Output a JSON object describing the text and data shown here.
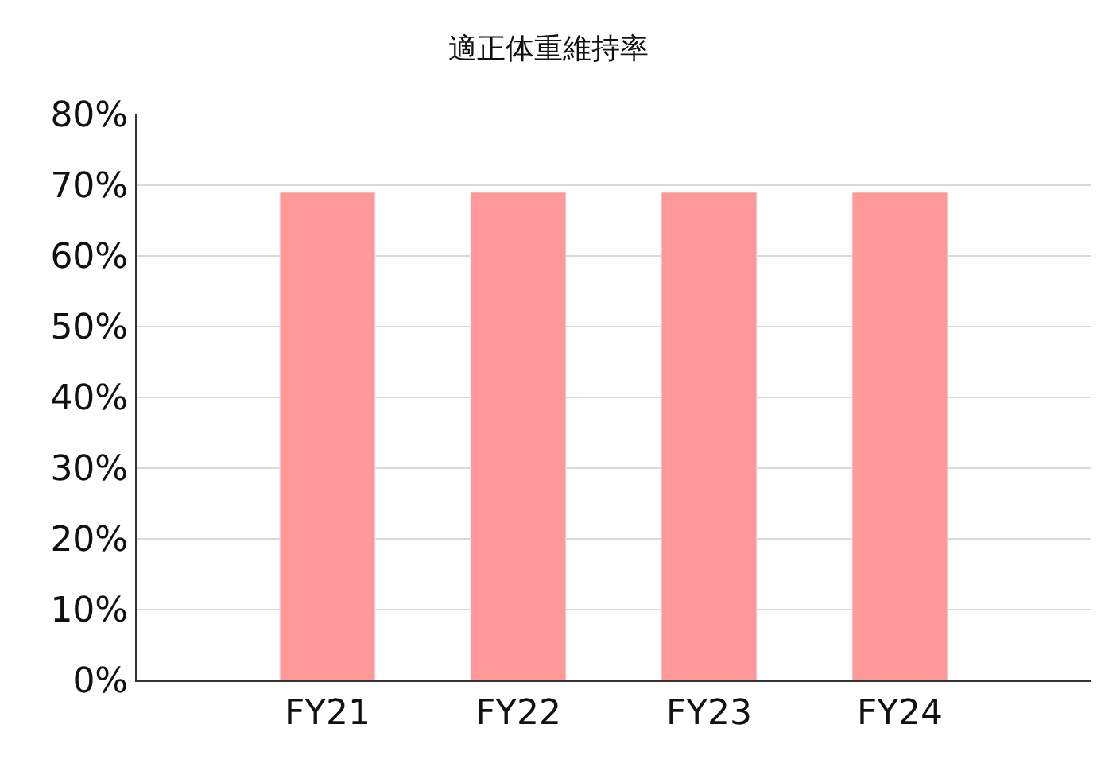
{
  "chart_data": {
    "type": "bar",
    "title": "適正体重維持率",
    "categories": [
      "FY21",
      "FY22",
      "FY23",
      "FY24"
    ],
    "values": [
      69,
      69,
      69,
      69
    ],
    "color": "#ff9999",
    "ylim": [
      0,
      80
    ],
    "yticks": [
      {
        "value": 0,
        "label": "0%"
      },
      {
        "value": 10,
        "label": "10%"
      },
      {
        "value": 20,
        "label": "20%"
      },
      {
        "value": 30,
        "label": "30%"
      },
      {
        "value": 40,
        "label": "40%"
      },
      {
        "value": 50,
        "label": "50%"
      },
      {
        "value": 60,
        "label": "60%"
      },
      {
        "value": 70,
        "label": "70%"
      },
      {
        "value": 80,
        "label": "80%"
      }
    ],
    "grid": "y"
  }
}
